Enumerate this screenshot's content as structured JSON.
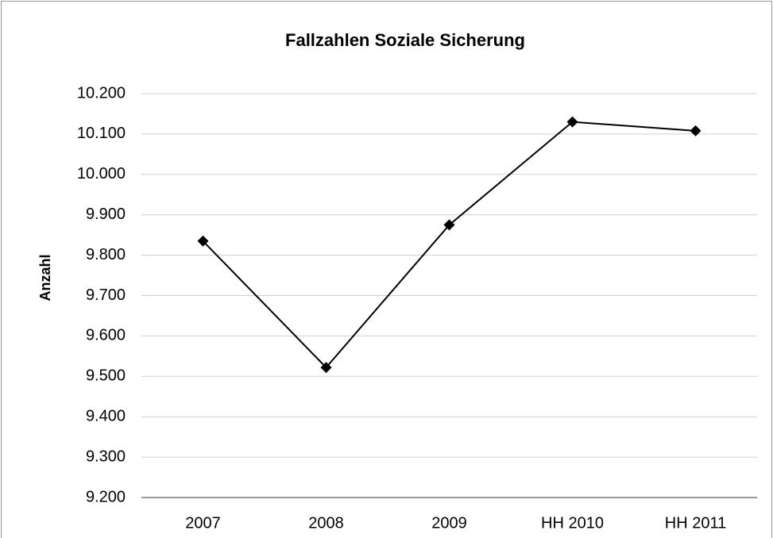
{
  "chart_data": {
    "type": "line",
    "title": "Fallzahlen Soziale Sicherung",
    "y_label": "Anzahl",
    "categories": [
      "2007",
      "2008",
      "2009",
      "HH 2010",
      "HH 2011"
    ],
    "series": [
      {
        "name": "Anzahl",
        "color": "#000000",
        "values": [
          9835,
          9522,
          9875,
          10130,
          10108
        ]
      }
    ],
    "ylim": [
      9200,
      10200
    ],
    "yticks": [
      {
        "value": 9200,
        "label": "9.200"
      },
      {
        "value": 9300,
        "label": "9.300"
      },
      {
        "value": 9400,
        "label": "9.400"
      },
      {
        "value": 9500,
        "label": "9.500"
      },
      {
        "value": 9600,
        "label": "9.600"
      },
      {
        "value": 9700,
        "label": "9.700"
      },
      {
        "value": 9800,
        "label": "9.800"
      },
      {
        "value": 9900,
        "label": "9.900"
      },
      {
        "value": 10000,
        "label": "10.000"
      },
      {
        "value": 10100,
        "label": "10.100"
      },
      {
        "value": 10200,
        "label": "10.200"
      }
    ],
    "grid": true
  }
}
